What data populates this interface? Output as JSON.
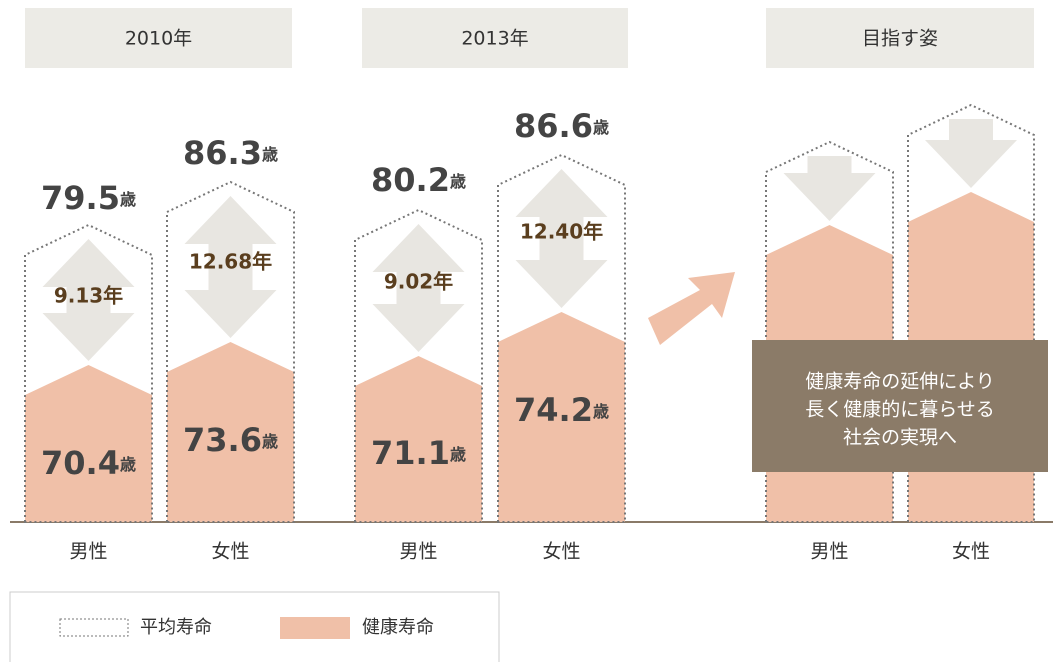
{
  "panels": [
    {
      "title": "2010年",
      "bars": [
        {
          "category": "男性",
          "life": "79.5",
          "health": "70.4",
          "gap": "9.13年"
        },
        {
          "category": "女性",
          "life": "86.3",
          "health": "73.6",
          "gap": "12.68年"
        }
      ]
    },
    {
      "title": "2013年",
      "bars": [
        {
          "category": "男性",
          "life": "80.2",
          "health": "71.1",
          "gap": "9.02年"
        },
        {
          "category": "女性",
          "life": "86.6",
          "health": "74.2",
          "gap": "12.40年"
        }
      ]
    },
    {
      "title": "目指す姿",
      "bars": [
        {
          "category": "男性"
        },
        {
          "category": "女性"
        }
      ]
    }
  ],
  "unit": "歳",
  "message": [
    "健康寿命の延伸により",
    "長く健康的に暮らせる",
    "社会の実現へ"
  ],
  "legend": {
    "life": "平均寿命",
    "health": "健康寿命"
  }
}
